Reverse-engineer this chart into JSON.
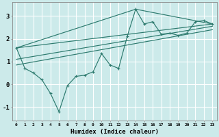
{
  "xlabel": "Humidex (Indice chaleur)",
  "bg_color": "#cceaea",
  "grid_color": "#ffffff",
  "line_color": "#2d7a6e",
  "xlim": [
    -0.5,
    23.5
  ],
  "ylim": [
    -1.6,
    3.6
  ],
  "yticks": [
    -1,
    0,
    1,
    2,
    3
  ],
  "xticks": [
    0,
    1,
    2,
    3,
    4,
    5,
    6,
    7,
    8,
    9,
    10,
    11,
    12,
    13,
    14,
    15,
    16,
    17,
    18,
    19,
    20,
    21,
    22,
    23
  ],
  "main_line": {
    "x": [
      0,
      1,
      2,
      3,
      4,
      5,
      6,
      7,
      8,
      9,
      10,
      11,
      12,
      13,
      14,
      15,
      16,
      17,
      18,
      19,
      20,
      21,
      22,
      23
    ],
    "y": [
      1.6,
      0.7,
      0.5,
      0.2,
      -0.4,
      -1.2,
      -0.05,
      0.35,
      0.4,
      0.55,
      1.35,
      0.85,
      0.7,
      2.1,
      3.3,
      2.65,
      2.75,
      2.2,
      2.25,
      2.15,
      2.25,
      2.75,
      2.8,
      2.65
    ]
  },
  "extra_lines": [
    {
      "x": [
        0,
        23
      ],
      "y": [
        1.6,
        2.65
      ]
    },
    {
      "x": [
        0,
        23
      ],
      "y": [
        1.1,
        2.55
      ]
    },
    {
      "x": [
        0,
        23
      ],
      "y": [
        0.85,
        2.4
      ]
    },
    {
      "x": [
        0,
        14,
        23
      ],
      "y": [
        1.6,
        3.3,
        2.65
      ]
    }
  ]
}
